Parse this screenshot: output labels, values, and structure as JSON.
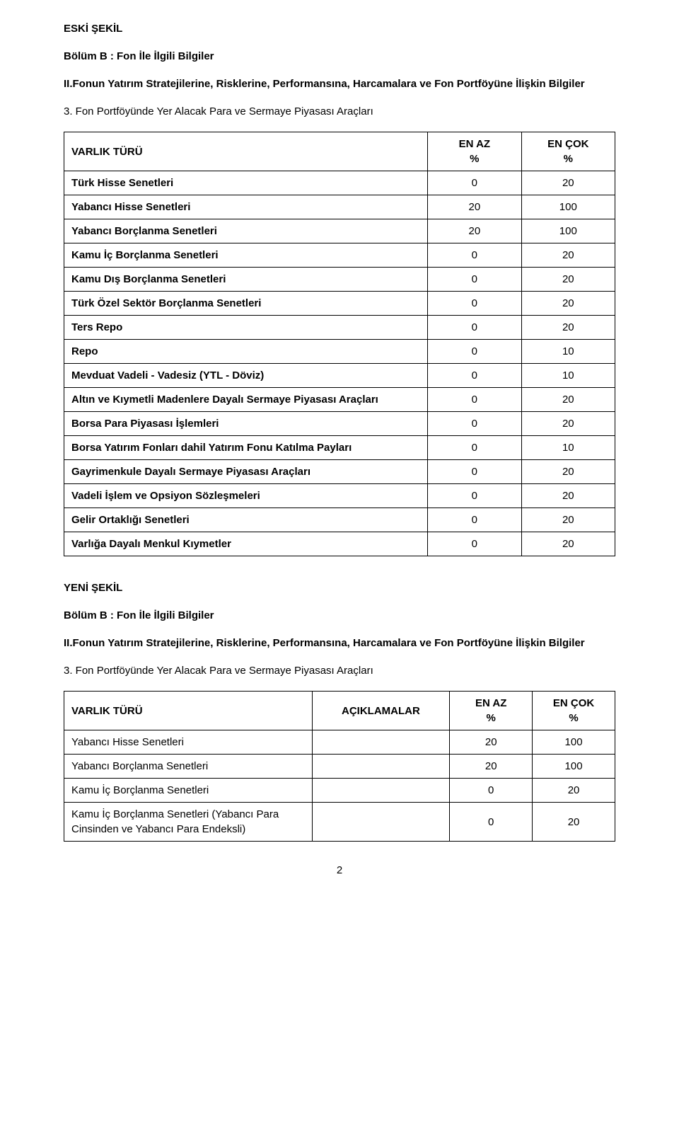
{
  "eski_sekil_label": "ESKİ ŞEKİL",
  "yeni_sekil_label": "YENİ ŞEKİL",
  "bolum_b_heading": "Bölüm B : Fon İle İlgili Bilgiler",
  "section_ii_text": "II.Fonun Yatırım Stratejilerine, Risklerine, Performansına, Harcamalara ve Fon Portföyüne İlişkin Bilgiler",
  "section_3_text": "3. Fon Portföyünde Yer Alacak Para ve Sermaye Piyasası Araçları",
  "table1": {
    "headers": {
      "col1": "VARLIK TÜRÜ",
      "col2_line1": "EN AZ",
      "col2_line2": "%",
      "col3_line1": "EN ÇOK",
      "col3_line2": "%"
    },
    "rows": [
      {
        "label": "Türk Hisse Senetleri",
        "min": "0",
        "max": "20"
      },
      {
        "label": "Yabancı Hisse Senetleri",
        "min": "20",
        "max": "100"
      },
      {
        "label": "Yabancı Borçlanma Senetleri",
        "min": "20",
        "max": "100"
      },
      {
        "label": "Kamu İç Borçlanma Senetleri",
        "min": "0",
        "max": "20"
      },
      {
        "label": "Kamu Dış Borçlanma Senetleri",
        "min": "0",
        "max": "20"
      },
      {
        "label": "Türk Özel Sektör Borçlanma Senetleri",
        "min": "0",
        "max": "20"
      },
      {
        "label": "Ters Repo",
        "min": "0",
        "max": "20"
      },
      {
        "label": "Repo",
        "min": "0",
        "max": "10"
      },
      {
        "label": "Mevduat Vadeli - Vadesiz (YTL - Döviz)",
        "min": "0",
        "max": "10"
      },
      {
        "label": "Altın ve Kıymetli Madenlere Dayalı Sermaye Piyasası Araçları",
        "min": "0",
        "max": "20"
      },
      {
        "label": "Borsa Para Piyasası İşlemleri",
        "min": "0",
        "max": "20"
      },
      {
        "label": "Borsa Yatırım Fonları dahil Yatırım Fonu Katılma Payları",
        "min": "0",
        "max": "10"
      },
      {
        "label": "Gayrimenkule Dayalı Sermaye Piyasası Araçları",
        "min": "0",
        "max": "20"
      },
      {
        "label": "Vadeli İşlem ve Opsiyon Sözleşmeleri",
        "min": "0",
        "max": "20"
      },
      {
        "label": "Gelir Ortaklığı Senetleri",
        "min": "0",
        "max": "20"
      },
      {
        "label": "Varlığa Dayalı Menkul Kıymetler",
        "min": "0",
        "max": "20"
      }
    ]
  },
  "table2": {
    "headers": {
      "col1": "VARLIK TÜRÜ",
      "col2": "AÇIKLAMALAR",
      "col3_line1": "EN AZ",
      "col3_line2": "%",
      "col4_line1": "EN ÇOK",
      "col4_line2": "%"
    },
    "rows": [
      {
        "label": "Yabancı Hisse Senetleri",
        "desc": "",
        "min": "20",
        "max": "100"
      },
      {
        "label": "Yabancı Borçlanma Senetleri",
        "desc": "",
        "min": "20",
        "max": "100"
      },
      {
        "label": "Kamu İç Borçlanma Senetleri",
        "desc": "",
        "min": "0",
        "max": "20"
      },
      {
        "label": "Kamu İç Borçlanma Senetleri (Yabancı Para Cinsinden ve Yabancı Para Endeksli)",
        "desc": "",
        "min": "0",
        "max": "20"
      }
    ]
  },
  "page_number": "2"
}
